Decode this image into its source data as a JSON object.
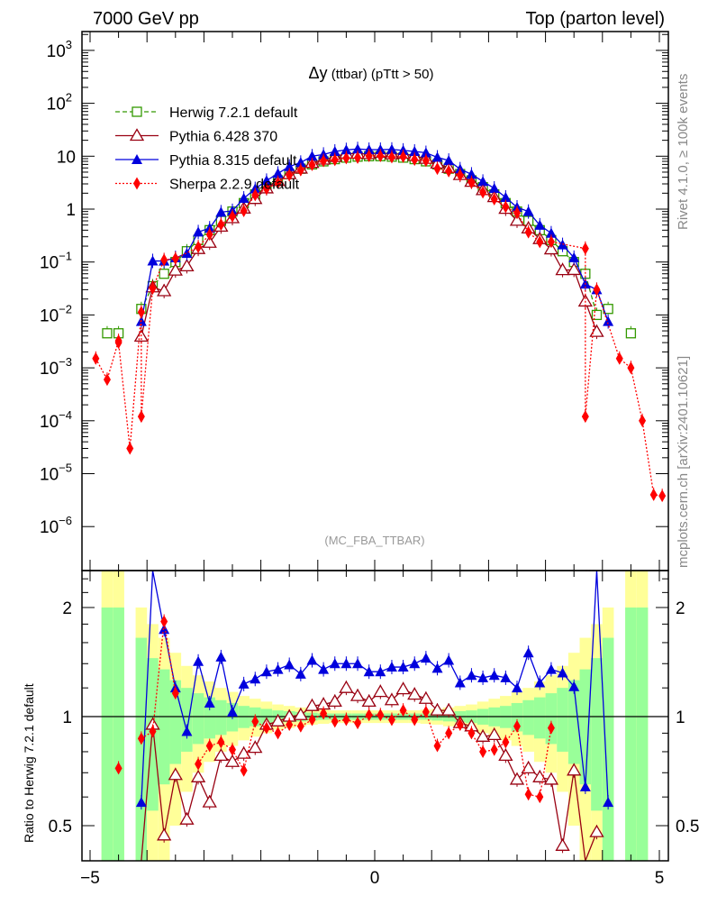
{
  "header": {
    "left": "7000 GeV pp",
    "right": "Top (parton level)"
  },
  "side_labels": {
    "rivet": "Rivet 4.1.0, ≥ 100k events",
    "mcplots": "mcplots.cern.ch [arXiv:2401.10621]"
  },
  "watermark": "(MC_FBA_TTBAR)",
  "chart_data": [
    {
      "type": "line",
      "panel": "main",
      "title_symbol": "Δy",
      "title_rest": " (ttbar) (pTtt > 50)",
      "yscale": "log",
      "ylim": [
        1.4e-07,
        2200
      ],
      "xlim": [
        -5.05,
        5.2
      ],
      "y_ticks": [
        {
          "v": 1000,
          "base": "10",
          "exp": "3"
        },
        {
          "v": 100,
          "base": "10",
          "exp": "2"
        },
        {
          "v": 10,
          "base": "10",
          "exp": ""
        },
        {
          "v": 1,
          "base": "1",
          "exp": ""
        },
        {
          "v": 0.1,
          "base": "10",
          "exp": "−1"
        },
        {
          "v": 0.01,
          "base": "10",
          "exp": "−2"
        },
        {
          "v": 0.001,
          "base": "10",
          "exp": "−3"
        },
        {
          "v": 0.0001,
          "base": "10",
          "exp": "−4"
        },
        {
          "v": 1e-05,
          "base": "10",
          "exp": "−5"
        },
        {
          "v": 1e-06,
          "base": "10",
          "exp": "−6"
        }
      ],
      "x": [
        -4.9,
        -4.7,
        -4.5,
        -4.3,
        -4.1,
        -3.9,
        -3.7,
        -3.5,
        -3.3,
        -3.1,
        -2.9,
        -2.7,
        -2.5,
        -2.3,
        -2.1,
        -1.9,
        -1.7,
        -1.5,
        -1.3,
        -1.1,
        -0.9,
        -0.7,
        -0.5,
        -0.3,
        -0.1,
        0.1,
        0.3,
        0.5,
        0.7,
        0.9,
        1.1,
        1.3,
        1.5,
        1.7,
        1.9,
        2.1,
        2.3,
        2.5,
        2.7,
        2.9,
        3.1,
        3.3,
        3.5,
        3.7,
        3.9,
        4.1,
        4.3,
        4.5,
        4.7,
        4.9
      ],
      "herwig": [
        null,
        0.0045,
        0.0045,
        null,
        0.013,
        0.035,
        0.06,
        0.1,
        0.16,
        0.26,
        0.4,
        0.6,
        0.9,
        1.3,
        1.9,
        2.6,
        3.5,
        4.6,
        5.8,
        7.0,
        8.0,
        8.8,
        9.4,
        9.8,
        10,
        10,
        9.8,
        9.4,
        8.8,
        8.0,
        7.0,
        5.8,
        4.6,
        3.5,
        2.6,
        1.9,
        1.3,
        0.9,
        0.6,
        0.4,
        0.26,
        0.16,
        0.1,
        0.06,
        0.01,
        0.013,
        null,
        0.0045,
        null,
        null
      ],
      "sherpa_tails": [
        {
          "x": -4.9,
          "y": 0.0015
        },
        {
          "x": -4.7,
          "y": 0.0006
        },
        {
          "x": -4.5,
          "y": 0.003
        },
        {
          "x": -4.3,
          "y": 3e-05
        },
        {
          "x": -4.1,
          "y": 0.00012
        },
        {
          "x": 3.7,
          "y": 0.00012
        },
        {
          "x": 4.3,
          "y": 0.0015
        },
        {
          "x": 4.5,
          "y": 0.001
        },
        {
          "x": 4.7,
          "y": 0.0001
        },
        {
          "x": 4.9,
          "y": 4e-06
        },
        {
          "x": 5.05,
          "y": 3.8e-06
        }
      ],
      "legend_position": "top-left",
      "legend": [
        "Herwig 7.2.1 default",
        "Pythia 6.428 370",
        "Pythia 8.315 default",
        "Sherpa 2.2.9 default"
      ],
      "colors": {
        "herwig": "#339900",
        "pythia6": "#990011",
        "pythia8": "#0000dd",
        "sherpa": "#ff0000"
      }
    },
    {
      "type": "line",
      "panel": "ratio",
      "ylabel": "Ratio to Herwig 7.2.1 default",
      "yscale": "log",
      "ylim": [
        0.4,
        2.5
      ],
      "y_ticks": [
        {
          "v": 2,
          "label": "2"
        },
        {
          "v": 1,
          "label": "1"
        },
        {
          "v": 0.5,
          "label": "0.5"
        }
      ],
      "x_ticks": [
        {
          "v": -5,
          "label": "−5"
        },
        {
          "v": 0,
          "label": "0"
        },
        {
          "v": 5,
          "label": "5"
        }
      ],
      "band_abs_x": [
        0.1,
        0.3,
        0.5,
        0.7,
        0.9,
        1.1,
        1.3,
        1.5,
        1.7,
        1.9,
        2.1,
        2.3,
        2.5,
        2.7,
        2.9,
        3.1,
        3.3,
        3.5,
        3.7,
        3.9,
        4.1,
        4.3,
        4.5,
        4.7,
        4.9
      ],
      "band_green": [
        0.02,
        0.02,
        0.02,
        0.02,
        0.02,
        0.025,
        0.03,
        0.035,
        0.04,
        0.05,
        0.06,
        0.07,
        0.09,
        0.11,
        0.13,
        0.16,
        0.2,
        0.26,
        0.35,
        0.45,
        0.65,
        null,
        1.0,
        1.0,
        null
      ],
      "band_yellow": [
        0.04,
        0.04,
        0.04,
        0.04,
        0.045,
        0.05,
        0.06,
        0.07,
        0.08,
        0.1,
        0.12,
        0.14,
        0.17,
        0.2,
        0.25,
        0.3,
        0.38,
        0.5,
        0.65,
        0.8,
        1.0,
        null,
        2.0,
        2.0,
        null
      ],
      "pythia8": [
        null,
        null,
        null,
        null,
        0.58,
        3.0,
        1.74,
        1.2,
        0.91,
        1.42,
        1.09,
        1.46,
        1.03,
        1.23,
        1.27,
        1.33,
        1.35,
        1.39,
        1.31,
        1.43,
        1.35,
        1.4,
        1.4,
        1.4,
        1.33,
        1.33,
        1.37,
        1.37,
        1.4,
        1.45,
        1.36,
        1.43,
        1.24,
        1.3,
        1.28,
        1.3,
        1.28,
        1.2,
        1.5,
        1.24,
        1.35,
        1.32,
        1.21,
        0.64,
        3.0,
        0.58,
        null,
        null,
        null,
        null
      ],
      "pythia6": [
        null,
        null,
        null,
        null,
        0.3,
        0.95,
        0.47,
        0.69,
        0.52,
        0.68,
        0.58,
        0.78,
        0.75,
        0.79,
        0.82,
        0.95,
        0.97,
        1.0,
        1.01,
        1.07,
        1.08,
        1.1,
        1.2,
        1.14,
        1.1,
        1.17,
        1.11,
        1.19,
        1.15,
        1.12,
        1.04,
        1.04,
        0.96,
        0.94,
        0.88,
        0.89,
        0.78,
        0.67,
        0.72,
        0.68,
        0.67,
        0.44,
        0.71,
        0.3,
        0.48,
        null,
        null,
        null,
        null,
        null
      ],
      "sherpa": [
        null,
        null,
        0.72,
        null,
        0.87,
        0.91,
        1.83,
        1.16,
        null,
        0.74,
        0.83,
        0.85,
        0.81,
        0.71,
        0.97,
        0.93,
        0.9,
        0.95,
        0.94,
        0.98,
        1.02,
        0.97,
        0.98,
        0.96,
        1.01,
        1.01,
        0.98,
        1.04,
        0.98,
        1.03,
        0.83,
        0.9,
        0.95,
        0.9,
        0.8,
        0.81,
        0.85,
        0.94,
        0.61,
        0.6,
        0.93,
        null,
        null,
        3.0,
        3.0,
        null,
        null,
        null,
        null,
        null
      ]
    }
  ]
}
